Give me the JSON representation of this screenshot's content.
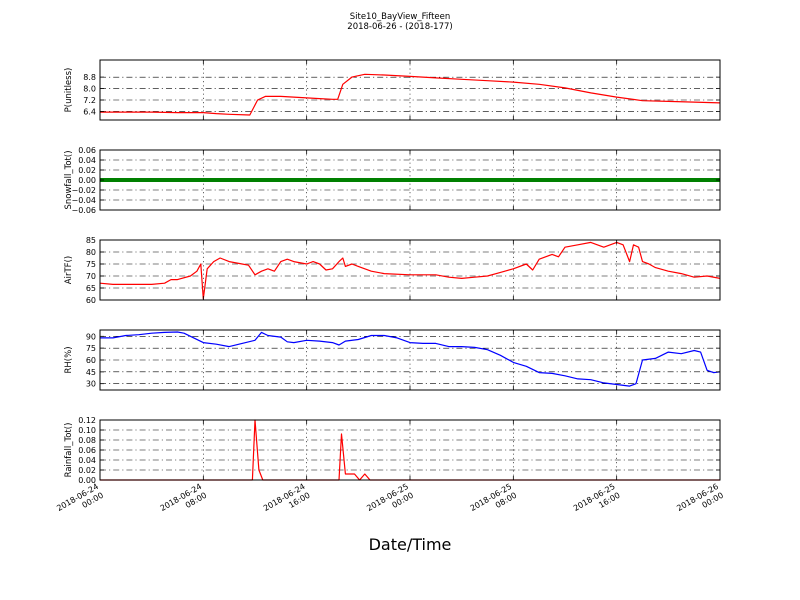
{
  "figure": {
    "title": "Site10_BayView_Fifteen",
    "subtitle": "2018-06-26 - (2018-177)",
    "xlabel": "Date/Time"
  },
  "x_ticks": [
    {
      "t": 0,
      "line1": "2018-06-24",
      "line2": "00:00"
    },
    {
      "t": 8,
      "line1": "2018-06-24",
      "line2": "08:00"
    },
    {
      "t": 16,
      "line1": "2018-06-24",
      "line2": "16:00"
    },
    {
      "t": 24,
      "line1": "2018-06-25",
      "line2": "00:00"
    },
    {
      "t": 32,
      "line1": "2018-06-25",
      "line2": "08:00"
    },
    {
      "t": 40,
      "line1": "2018-06-25",
      "line2": "16:00"
    },
    {
      "t": 48,
      "line1": "2018-06-26",
      "line2": "00:00"
    }
  ],
  "chart_data": [
    {
      "type": "line",
      "ylabel": "P(unitless)",
      "ylim": [
        5.8,
        10.0
      ],
      "yticks": [
        6.4,
        7.2,
        8.0,
        8.8
      ],
      "ytick_labels": [
        "6.4",
        "7.2",
        "8.0",
        "8.8"
      ],
      "grid": true,
      "series": [
        {
          "color": "#ff0000",
          "points": [
            [
              0,
              6.35
            ],
            [
              4,
              6.35
            ],
            [
              6,
              6.32
            ],
            [
              8,
              6.32
            ],
            [
              9,
              6.25
            ],
            [
              10,
              6.2
            ],
            [
              11.6,
              6.15
            ],
            [
              12.2,
              7.2
            ],
            [
              12.8,
              7.45
            ],
            [
              14,
              7.45
            ],
            [
              16,
              7.35
            ],
            [
              17,
              7.3
            ],
            [
              18,
              7.25
            ],
            [
              18.4,
              7.25
            ],
            [
              18.8,
              8.3
            ],
            [
              19.5,
              8.8
            ],
            [
              20.5,
              9.0
            ],
            [
              22,
              8.95
            ],
            [
              24,
              8.85
            ],
            [
              26,
              8.75
            ],
            [
              28,
              8.65
            ],
            [
              30,
              8.55
            ],
            [
              32,
              8.45
            ],
            [
              34,
              8.3
            ],
            [
              36,
              8.05
            ],
            [
              38,
              7.7
            ],
            [
              40,
              7.4
            ],
            [
              42,
              7.15
            ],
            [
              44,
              7.1
            ],
            [
              46,
              7.05
            ],
            [
              48,
              7.0
            ]
          ]
        }
      ]
    },
    {
      "type": "line",
      "ylabel": "Snowfall_Tot()",
      "ylim": [
        -0.06,
        0.06
      ],
      "yticks": [
        -0.06,
        -0.04,
        -0.02,
        0.0,
        0.02,
        0.04,
        0.06
      ],
      "ytick_labels": [
        "−0.06",
        "−0.04",
        "−0.02",
        "0.00",
        "0.02",
        "0.04",
        "0.06"
      ],
      "grid": true,
      "series": [
        {
          "color": "#008000",
          "marker": "point",
          "points": [
            [
              0,
              0
            ],
            [
              48,
              0
            ]
          ]
        }
      ]
    },
    {
      "type": "line",
      "ylabel": "AirTF()",
      "ylim": [
        60,
        85
      ],
      "yticks": [
        60,
        65,
        70,
        75,
        80,
        85
      ],
      "ytick_labels": [
        "60",
        "65",
        "70",
        "75",
        "80",
        "85"
      ],
      "grid": true,
      "series": [
        {
          "color": "#ff0000",
          "points": [
            [
              0,
              67
            ],
            [
              1,
              66.5
            ],
            [
              2,
              66.5
            ],
            [
              3,
              66.5
            ],
            [
              4,
              66.5
            ],
            [
              5,
              67
            ],
            [
              5.5,
              68.5
            ],
            [
              6,
              68.5
            ],
            [
              7,
              70
            ],
            [
              7.5,
              72
            ],
            [
              7.8,
              75
            ],
            [
              8,
              60.5
            ],
            [
              8.3,
              73
            ],
            [
              8.8,
              76
            ],
            [
              9.3,
              77.5
            ],
            [
              10,
              76
            ],
            [
              11,
              75
            ],
            [
              11.5,
              74.5
            ],
            [
              12,
              70.5
            ],
            [
              12.5,
              72
            ],
            [
              13,
              73
            ],
            [
              13.5,
              72
            ],
            [
              14,
              76
            ],
            [
              14.5,
              77
            ],
            [
              15,
              76
            ],
            [
              16,
              75
            ],
            [
              16.5,
              76
            ],
            [
              17,
              75
            ],
            [
              17.5,
              72.5
            ],
            [
              18,
              73
            ],
            [
              18.5,
              76
            ],
            [
              18.8,
              77.5
            ],
            [
              19,
              74
            ],
            [
              19.5,
              75
            ],
            [
              20,
              74
            ],
            [
              21,
              72
            ],
            [
              22,
              71
            ],
            [
              24,
              70.5
            ],
            [
              26,
              70.5
            ],
            [
              27,
              69.5
            ],
            [
              28,
              69
            ],
            [
              29,
              69.5
            ],
            [
              30,
              70
            ],
            [
              31,
              71.5
            ],
            [
              32,
              73
            ],
            [
              33,
              75
            ],
            [
              33.5,
              72.5
            ],
            [
              34,
              77
            ],
            [
              35,
              79
            ],
            [
              35.5,
              78
            ],
            [
              36,
              82
            ],
            [
              37,
              83
            ],
            [
              38,
              84
            ],
            [
              39,
              82
            ],
            [
              40,
              84
            ],
            [
              40.5,
              83
            ],
            [
              41,
              76
            ],
            [
              41.3,
              83
            ],
            [
              41.7,
              82
            ],
            [
              42,
              76
            ],
            [
              42.5,
              75
            ],
            [
              43,
              73.5
            ],
            [
              44,
              72
            ],
            [
              45,
              71
            ],
            [
              46,
              69.5
            ],
            [
              47,
              70
            ],
            [
              48,
              69
            ]
          ]
        }
      ]
    },
    {
      "type": "line",
      "ylabel": "RH(%)",
      "ylim": [
        22,
        98
      ],
      "yticks": [
        30,
        45,
        60,
        75,
        90
      ],
      "ytick_labels": [
        "30",
        "45",
        "60",
        "75",
        "90"
      ],
      "grid": true,
      "series": [
        {
          "color": "#0000ff",
          "points": [
            [
              0,
              88
            ],
            [
              1,
              88
            ],
            [
              2,
              91
            ],
            [
              3,
              92
            ],
            [
              4,
              94
            ],
            [
              5,
              95
            ],
            [
              6,
              95.5
            ],
            [
              6.5,
              94
            ],
            [
              7,
              90
            ],
            [
              8,
              82
            ],
            [
              9,
              80
            ],
            [
              10,
              77
            ],
            [
              11,
              81
            ],
            [
              12,
              85
            ],
            [
              12.5,
              95
            ],
            [
              13,
              91
            ],
            [
              14,
              89
            ],
            [
              14.5,
              83
            ],
            [
              15,
              82
            ],
            [
              16,
              85
            ],
            [
              17,
              84
            ],
            [
              18,
              82
            ],
            [
              18.5,
              79
            ],
            [
              19,
              84
            ],
            [
              20,
              86
            ],
            [
              21,
              91
            ],
            [
              22,
              91
            ],
            [
              23,
              88
            ],
            [
              24,
              82
            ],
            [
              25,
              81
            ],
            [
              26,
              81
            ],
            [
              27,
              77
            ],
            [
              28,
              77
            ],
            [
              29,
              76
            ],
            [
              30,
              73
            ],
            [
              31,
              66
            ],
            [
              32,
              57
            ],
            [
              33,
              52
            ],
            [
              34,
              44
            ],
            [
              35,
              43
            ],
            [
              36,
              40
            ],
            [
              37,
              36
            ],
            [
              38,
              35
            ],
            [
              39,
              31
            ],
            [
              40,
              29
            ],
            [
              41,
              27
            ],
            [
              41.5,
              30
            ],
            [
              42,
              60
            ],
            [
              43,
              62
            ],
            [
              44,
              70
            ],
            [
              45,
              68
            ],
            [
              46,
              72
            ],
            [
              46.5,
              70
            ],
            [
              47,
              47
            ],
            [
              47.5,
              44
            ],
            [
              48,
              45
            ]
          ]
        }
      ]
    },
    {
      "type": "line",
      "ylabel": "Rainfall_Tot()",
      "ylim": [
        0.0,
        0.12
      ],
      "yticks": [
        0.0,
        0.02,
        0.04,
        0.06,
        0.08,
        0.1,
        0.12
      ],
      "ytick_labels": [
        "0.00",
        "0.02",
        "0.04",
        "0.06",
        "0.08",
        "0.10",
        "0.12"
      ],
      "grid": true,
      "series": [
        {
          "color": "#ff0000",
          "points": [
            [
              0,
              0
            ],
            [
              11.8,
              0
            ],
            [
              12.0,
              0.12
            ],
            [
              12.3,
              0.02
            ],
            [
              12.6,
              0
            ],
            [
              18.5,
              0
            ],
            [
              18.7,
              0.092
            ],
            [
              19.0,
              0.012
            ],
            [
              19.7,
              0.012
            ],
            [
              20.1,
              0
            ],
            [
              20.5,
              0.012
            ],
            [
              20.9,
              0
            ],
            [
              48,
              0
            ]
          ]
        }
      ]
    }
  ]
}
